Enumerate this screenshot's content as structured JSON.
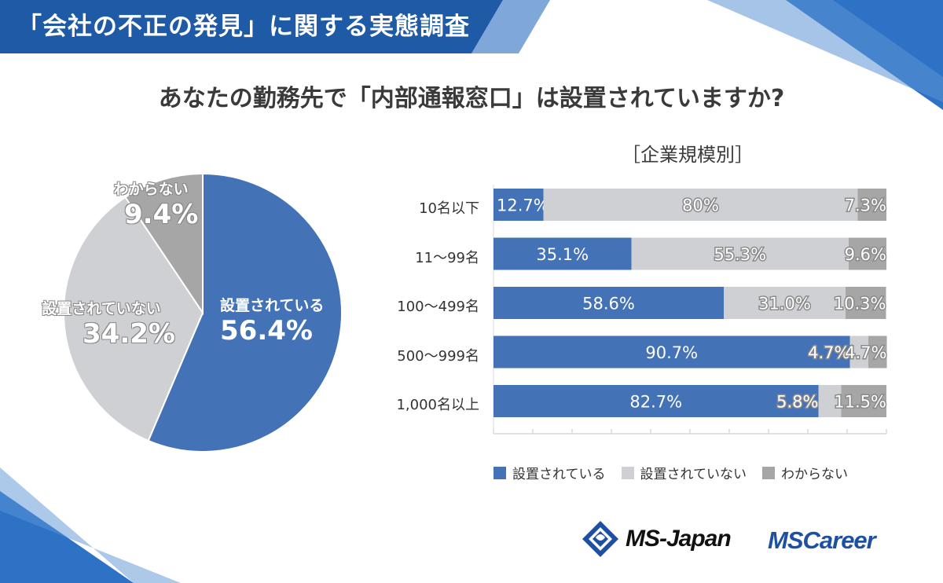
{
  "header": {
    "title": "「会社の不正の発見」に関する実態調査"
  },
  "question": "あなたの勤務先で「内部通報窓口」は設置されていますか?",
  "colors": {
    "installed": "#4472b6",
    "not_installed": "#cfd0d4",
    "unknown": "#a6a6a6",
    "header_bg": "#1f5aa6",
    "brand_blue": "#1d4fa3"
  },
  "chart_data": [
    {
      "type": "pie",
      "slices": [
        {
          "label": "設置されている",
          "value": 56.4,
          "display": "56.4%"
        },
        {
          "label": "設置されていない",
          "value": 34.2,
          "display": "34.2%"
        },
        {
          "label": "わからない",
          "value": 9.4,
          "display": "9.4%"
        }
      ]
    },
    {
      "type": "bar",
      "orientation": "horizontal",
      "stacked": true,
      "title": "［企業規模別］",
      "categories": [
        "10名以下",
        "11～99名",
        "100～499名",
        "500～999名",
        "1,000名以上"
      ],
      "series": [
        {
          "name": "設置されている",
          "values": [
            12.7,
            35.1,
            58.6,
            90.7,
            82.7
          ],
          "labels": [
            "12.7%",
            "35.1%",
            "58.6%",
            "90.7%",
            "82.7%"
          ]
        },
        {
          "name": "設置されていない",
          "values": [
            80,
            55.3,
            31.0,
            4.7,
            5.8
          ],
          "labels": [
            "80%",
            "55.3%",
            "31.0%",
            "4.7%",
            "5.8%"
          ]
        },
        {
          "name": "わからない",
          "values": [
            7.3,
            9.6,
            10.3,
            4.7,
            11.5
          ],
          "labels": [
            "7.3%",
            "9.6%",
            "10.3%",
            "4.7%",
            "11.5%"
          ]
        }
      ],
      "xlim": [
        0,
        100
      ],
      "legend": "bottom"
    }
  ],
  "logos": {
    "ms_japan": "MS-Japan",
    "ms_career": "MSCareer"
  }
}
